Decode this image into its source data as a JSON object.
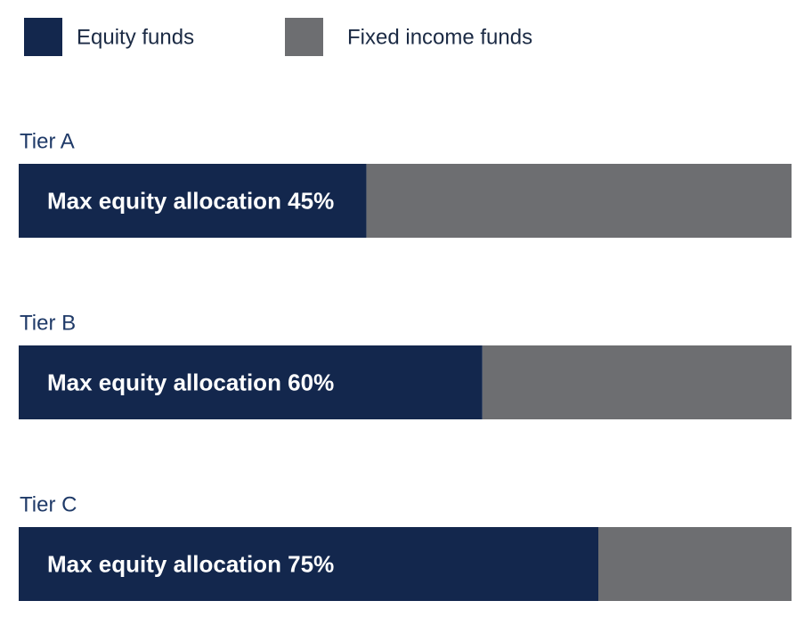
{
  "chart_data": {
    "type": "bar",
    "orientation": "horizontal",
    "stacked": true,
    "categories": [
      "Tier A",
      "Tier B",
      "Tier C"
    ],
    "series": [
      {
        "name": "Equity funds",
        "color": "#13274d",
        "values": [
          45,
          60,
          75
        ],
        "value_labels": [
          "Max equity allocation 45%",
          "Max equity allocation 60%",
          "Max equity allocation 75%"
        ]
      },
      {
        "name": "Fixed income funds",
        "color": "#6d6e71",
        "values": [
          55,
          40,
          25
        ]
      }
    ],
    "xlim": [
      0,
      100
    ]
  }
}
